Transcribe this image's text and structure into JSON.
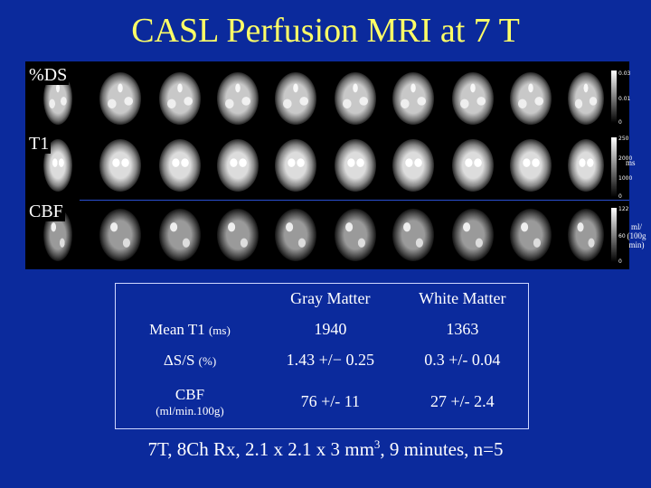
{
  "title": "CASL Perfusion MRI at 7 T",
  "rows": [
    {
      "label": "%DS",
      "scale": [
        "0.03",
        "0.01",
        "0"
      ],
      "unit": ""
    },
    {
      "label": "T1",
      "scale": [
        "250",
        "2000",
        "1000",
        "0"
      ],
      "unit": "ms"
    },
    {
      "label": "CBF",
      "scale": [
        "122",
        "60",
        "0"
      ],
      "unit": "ml/ (100g min)"
    }
  ],
  "table": {
    "headers": [
      "Gray Matter",
      "White Matter"
    ],
    "rows": [
      {
        "name": "Mean T1",
        "unit": "(ms)",
        "gm": "1940",
        "wm": "1363"
      },
      {
        "name": "ΔS/S",
        "unit": "(%)",
        "gm": "1.43 +/− 0.25",
        "wm": "0.3 +/- 0.04"
      },
      {
        "name": "CBF",
        "unit": "(ml/min.100g)",
        "gm": "76 +/- 11",
        "wm": "27 +/- 2.4"
      }
    ]
  },
  "footer": {
    "before": "7T, 8Ch Rx, 2.1 x 2.1 x 3 mm",
    "sup": "3",
    "after": ",  9 minutes, n=5"
  }
}
